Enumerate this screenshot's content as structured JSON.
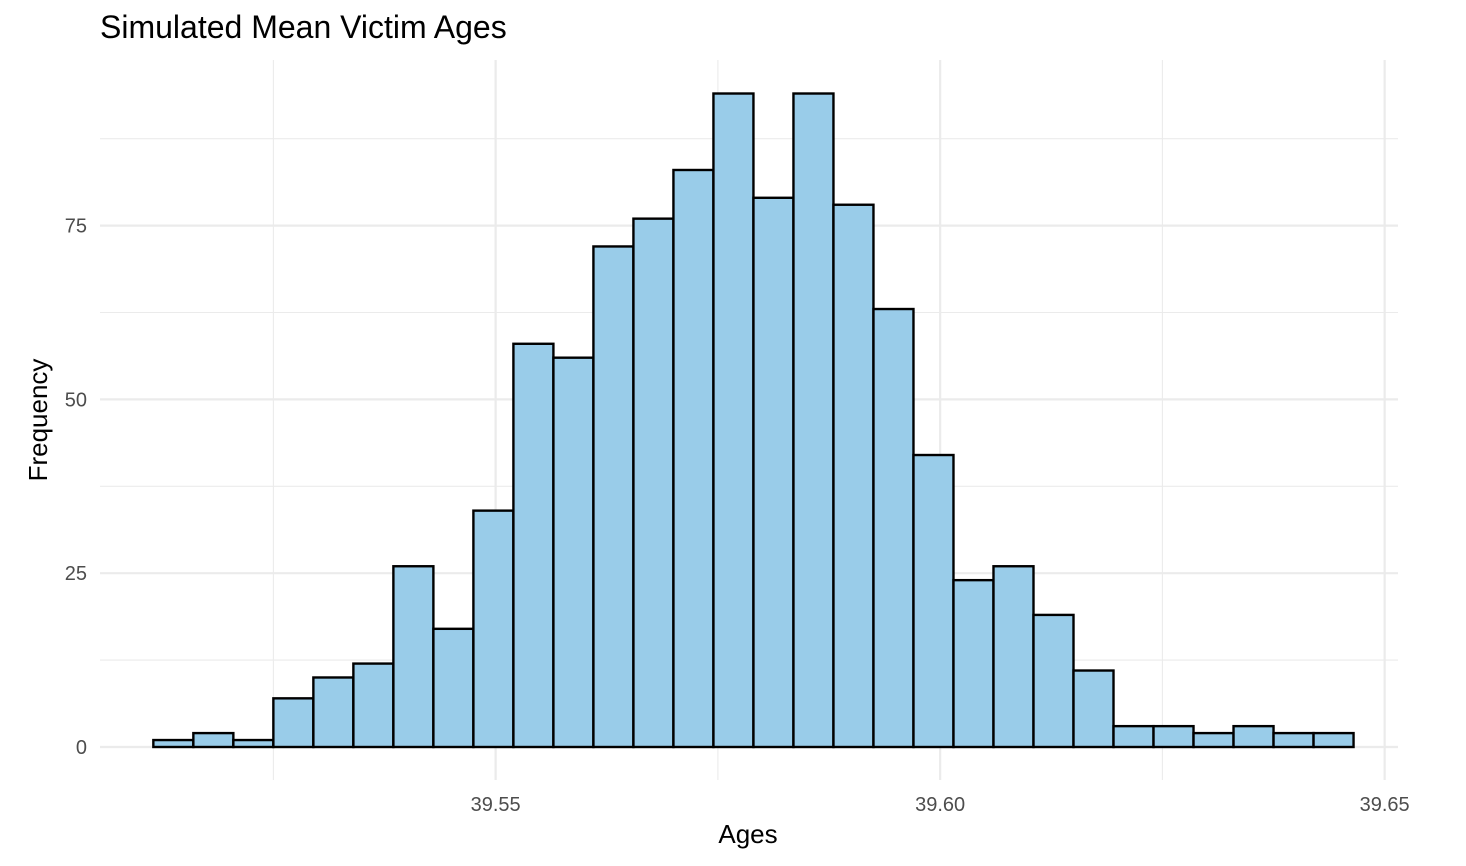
{
  "chart_data": {
    "type": "bar",
    "title": "Simulated Mean Victim Ages",
    "xlabel": "Ages",
    "ylabel": "Frequency",
    "bin_start": 39.5115,
    "bin_width": 0.0045,
    "values": [
      1,
      2,
      1,
      7,
      10,
      12,
      26,
      17,
      34,
      58,
      56,
      72,
      76,
      83,
      94,
      79,
      94,
      78,
      63,
      42,
      24,
      26,
      19,
      11,
      3,
      3,
      2,
      3,
      2,
      2
    ],
    "xlim": [
      39.5055,
      39.6515
    ],
    "ylim": [
      0,
      96.5
    ],
    "x_ticks": [
      39.55,
      39.6,
      39.65
    ],
    "x_tick_labels": [
      "39.55",
      "39.60",
      "39.65"
    ],
    "x_minor_ticks": [
      39.525,
      39.575,
      39.625
    ],
    "y_ticks": [
      0,
      25,
      50,
      75
    ],
    "y_tick_labels": [
      "0",
      "25",
      "50",
      "75"
    ],
    "y_minor_ticks": [
      12.5,
      37.5,
      62.5,
      87.5
    ],
    "bar_fill": "#99cce9",
    "bar_stroke": "#000000",
    "grid": true
  }
}
